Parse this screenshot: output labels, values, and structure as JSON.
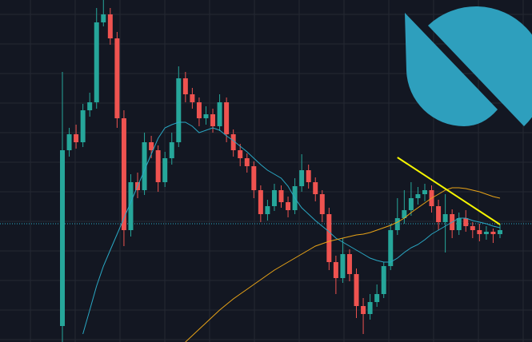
{
  "chart_data": {
    "type": "candlestick",
    "categories": [
      null,
      null,
      null,
      null,
      null,
      null,
      null,
      null,
      null,
      null,
      null,
      null,
      null,
      null,
      null,
      null,
      null,
      null,
      null,
      null,
      null,
      null,
      null,
      null,
      null,
      null,
      null,
      null,
      null,
      null,
      null,
      null,
      null,
      null,
      null,
      null,
      null,
      null,
      null,
      null,
      null,
      null,
      null,
      null,
      null,
      null,
      null,
      null,
      null,
      null,
      null,
      null,
      null,
      null,
      null,
      null,
      null,
      null,
      null,
      null,
      null,
      null,
      null,
      null,
      null
    ],
    "open": [
      20,
      240,
      260,
      250,
      290,
      300,
      400,
      410,
      380,
      280,
      140,
      200,
      190,
      250,
      240,
      200,
      230,
      250,
      330,
      310,
      300,
      280,
      285,
      270,
      300,
      260,
      240,
      230,
      220,
      190,
      160,
      170,
      190,
      175,
      165,
      195,
      215,
      200,
      185,
      160,
      100,
      80,
      110,
      85,
      45,
      35,
      50,
      60,
      95,
      140,
      155,
      165,
      180,
      185,
      190,
      170,
      150,
      160,
      140,
      155,
      145,
      140,
      135,
      138,
      135
    ],
    "high": [
      338,
      268,
      272,
      298,
      312,
      418,
      428,
      418,
      388,
      290,
      210,
      212,
      262,
      258,
      246,
      238,
      262,
      345,
      338,
      318,
      306,
      295,
      292,
      310,
      306,
      266,
      248,
      236,
      226,
      196,
      178,
      198,
      196,
      182,
      205,
      235,
      222,
      206,
      190,
      168,
      108,
      130,
      116,
      92,
      55,
      60,
      72,
      100,
      148,
      180,
      190,
      200,
      194,
      198,
      196,
      178,
      185,
      166,
      162,
      165,
      150,
      148,
      145,
      142,
      148
    ],
    "low": [
      0,
      232,
      242,
      244,
      282,
      292,
      395,
      372,
      268,
      120,
      132,
      180,
      184,
      230,
      188,
      194,
      222,
      244,
      300,
      292,
      270,
      272,
      262,
      264,
      250,
      232,
      220,
      212,
      180,
      150,
      152,
      164,
      168,
      156,
      160,
      188,
      192,
      176,
      150,
      90,
      60,
      74,
      76,
      30,
      10,
      28,
      44,
      55,
      90,
      134,
      148,
      158,
      172,
      176,
      162,
      140,
      112,
      130,
      134,
      138,
      130,
      126,
      128,
      124,
      130
    ],
    "close": [
      240,
      260,
      250,
      290,
      300,
      400,
      410,
      380,
      280,
      140,
      200,
      190,
      250,
      240,
      200,
      230,
      250,
      330,
      310,
      300,
      280,
      285,
      270,
      300,
      260,
      240,
      230,
      220,
      190,
      160,
      170,
      190,
      175,
      165,
      195,
      215,
      200,
      185,
      160,
      100,
      80,
      110,
      85,
      45,
      35,
      50,
      60,
      95,
      140,
      155,
      165,
      180,
      185,
      190,
      170,
      150,
      160,
      140,
      155,
      145,
      140,
      135,
      138,
      135,
      140
    ],
    "up_color": "#26a69a",
    "down_color": "#ef5350",
    "lines": [
      {
        "color": "#2aa8c4",
        "values": [
          null,
          null,
          null,
          10,
          40,
          70,
          95,
          115,
          135,
          155,
          175,
          195,
          215,
          235,
          255,
          268,
          272,
          275,
          275,
          270,
          262,
          265,
          268,
          265,
          258,
          252,
          245,
          238,
          230,
          222,
          215,
          210,
          205,
          195,
          180,
          168,
          160,
          152,
          145,
          138,
          130,
          125,
          120,
          115,
          110,
          105,
          102,
          100,
          100,
          105,
          112,
          118,
          122,
          128,
          135,
          140,
          145,
          150,
          155,
          155,
          152,
          150,
          148,
          145,
          143
        ]
      },
      {
        "color": "#e8a317",
        "values": [
          null,
          null,
          null,
          null,
          null,
          null,
          null,
          null,
          null,
          null,
          null,
          null,
          null,
          null,
          null,
          null,
          null,
          null,
          0,
          8,
          16,
          24,
          32,
          40,
          47,
          54,
          60,
          66,
          72,
          78,
          84,
          90,
          95,
          100,
          105,
          110,
          115,
          120,
          123,
          126,
          128,
          130,
          132,
          134,
          135,
          137,
          140,
          143,
          146,
          150,
          155,
          162,
          168,
          174,
          180,
          185,
          190,
          193,
          193,
          192,
          190,
          188,
          185,
          182,
          180
        ]
      }
    ],
    "trendline": {
      "color": "#f5f500",
      "start": {
        "index": 49,
        "value": 231
      },
      "end": {
        "index": 64,
        "value": 147
      }
    },
    "price_line": {
      "color": "#2aa8c4",
      "value": 148
    },
    "ylim": [
      0,
      428
    ]
  }
}
